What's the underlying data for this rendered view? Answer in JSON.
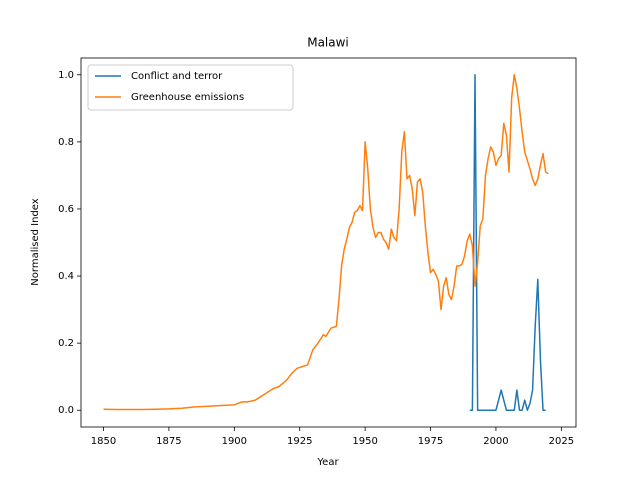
{
  "chart_data": {
    "type": "line",
    "title": "Malawi",
    "x_label": "Year",
    "y_label": "Normalised Index",
    "xlim": [
      1841.4,
      2030.6
    ],
    "ylim": [
      -0.05,
      1.05
    ],
    "xticks": [
      1850,
      1875,
      1900,
      1925,
      1950,
      1975,
      2000,
      2025
    ],
    "yticks": [
      {
        "value": 0,
        "label": "0.0"
      },
      0.2,
      0.4,
      0.6,
      0.8,
      {
        "value": 1,
        "label": "1.0"
      }
    ],
    "legend": "upper left",
    "series": [
      {
        "name": "Conflict and terror",
        "color": "#1f77b4",
        "x": [
          1990,
          1991,
          1992,
          1993,
          1994,
          1995,
          1996,
          1997,
          1998,
          1999,
          2000,
          2001,
          2002,
          2003,
          2004,
          2005,
          2006,
          2007,
          2008,
          2009,
          2010,
          2011,
          2012,
          2013,
          2014,
          2015,
          2016,
          2017,
          2018,
          2019
        ],
        "values": [
          0,
          0,
          1.0,
          0,
          0,
          0,
          0,
          0,
          0,
          0,
          0,
          0.03,
          0.06,
          0.03,
          0,
          0,
          0,
          0,
          0.06,
          0,
          0,
          0.03,
          0,
          0.02,
          0.06,
          0.25,
          0.39,
          0.15,
          0,
          0
        ]
      },
      {
        "name": "Greenhouse emissions",
        "color": "#ff7f0e",
        "x": [
          1850,
          1855,
          1860,
          1865,
          1870,
          1875,
          1880,
          1885,
          1890,
          1895,
          1900,
          1903,
          1905,
          1908,
          1910,
          1912,
          1915,
          1917,
          1920,
          1922,
          1924,
          1926,
          1928,
          1930,
          1932,
          1934,
          1935,
          1937,
          1939,
          1940,
          1941,
          1942,
          1943,
          1944,
          1945,
          1946,
          1947,
          1948,
          1949,
          1950,
          1951,
          1952,
          1953,
          1954,
          1955,
          1956,
          1957,
          1958,
          1959,
          1960,
          1961,
          1962,
          1963,
          1964,
          1965,
          1966,
          1967,
          1968,
          1969,
          1970,
          1971,
          1972,
          1973,
          1974,
          1975,
          1976,
          1977,
          1978,
          1979,
          1980,
          1981,
          1982,
          1983,
          1984,
          1985,
          1986,
          1987,
          1988,
          1989,
          1990,
          1991,
          1992,
          1993,
          1994,
          1995,
          1996,
          1997,
          1998,
          1999,
          2000,
          2001,
          2002,
          2003,
          2004,
          2005,
          2006,
          2007,
          2008,
          2009,
          2010,
          2011,
          2012,
          2013,
          2014,
          2015,
          2016,
          2017,
          2018,
          2019,
          2020
        ],
        "values": [
          0.003,
          0.002,
          0.002,
          0.002,
          0.003,
          0.004,
          0.006,
          0.01,
          0.012,
          0.014,
          0.016,
          0.025,
          0.025,
          0.03,
          0.04,
          0.05,
          0.065,
          0.07,
          0.09,
          0.11,
          0.125,
          0.13,
          0.135,
          0.18,
          0.2,
          0.225,
          0.22,
          0.245,
          0.25,
          0.33,
          0.43,
          0.48,
          0.51,
          0.545,
          0.56,
          0.59,
          0.595,
          0.61,
          0.595,
          0.8,
          0.72,
          0.6,
          0.545,
          0.515,
          0.53,
          0.53,
          0.51,
          0.5,
          0.48,
          0.54,
          0.515,
          0.505,
          0.6,
          0.77,
          0.83,
          0.69,
          0.7,
          0.66,
          0.58,
          0.68,
          0.69,
          0.65,
          0.55,
          0.47,
          0.41,
          0.42,
          0.405,
          0.385,
          0.3,
          0.37,
          0.395,
          0.345,
          0.33,
          0.37,
          0.43,
          0.43,
          0.435,
          0.46,
          0.505,
          0.525,
          0.49,
          0.37,
          0.44,
          0.55,
          0.57,
          0.7,
          0.75,
          0.785,
          0.77,
          0.73,
          0.75,
          0.76,
          0.855,
          0.82,
          0.71,
          0.93,
          1.0,
          0.96,
          0.9,
          0.83,
          0.77,
          0.745,
          0.72,
          0.69,
          0.67,
          0.69,
          0.73,
          0.765,
          0.71,
          0.705
        ]
      }
    ]
  }
}
